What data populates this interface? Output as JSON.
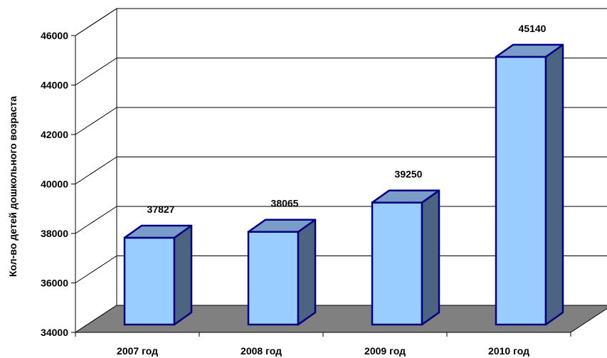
{
  "chart_data": {
    "type": "bar",
    "categories": [
      "2007 год",
      "2008 год",
      "2009 год",
      "2010 год"
    ],
    "values": [
      37827,
      38065,
      39250,
      45140
    ],
    "ylabel": "Кол-во детей дошкольного возраста",
    "xlabel": "",
    "ylim": [
      34000,
      46000
    ],
    "yticks": [
      "34000",
      "36000",
      "38000",
      "40000",
      "42000",
      "44000",
      "46000"
    ],
    "data_labels": [
      "37827",
      "38065",
      "39250",
      "45140"
    ],
    "grid": true,
    "style": "3d",
    "colors": {
      "bar_front": "#99CCFF",
      "bar_top": "#7A9CC8",
      "bar_side": "#4A6482",
      "bar_outline": "#000080",
      "floor": "#808080",
      "gridline": "#000000"
    }
  }
}
